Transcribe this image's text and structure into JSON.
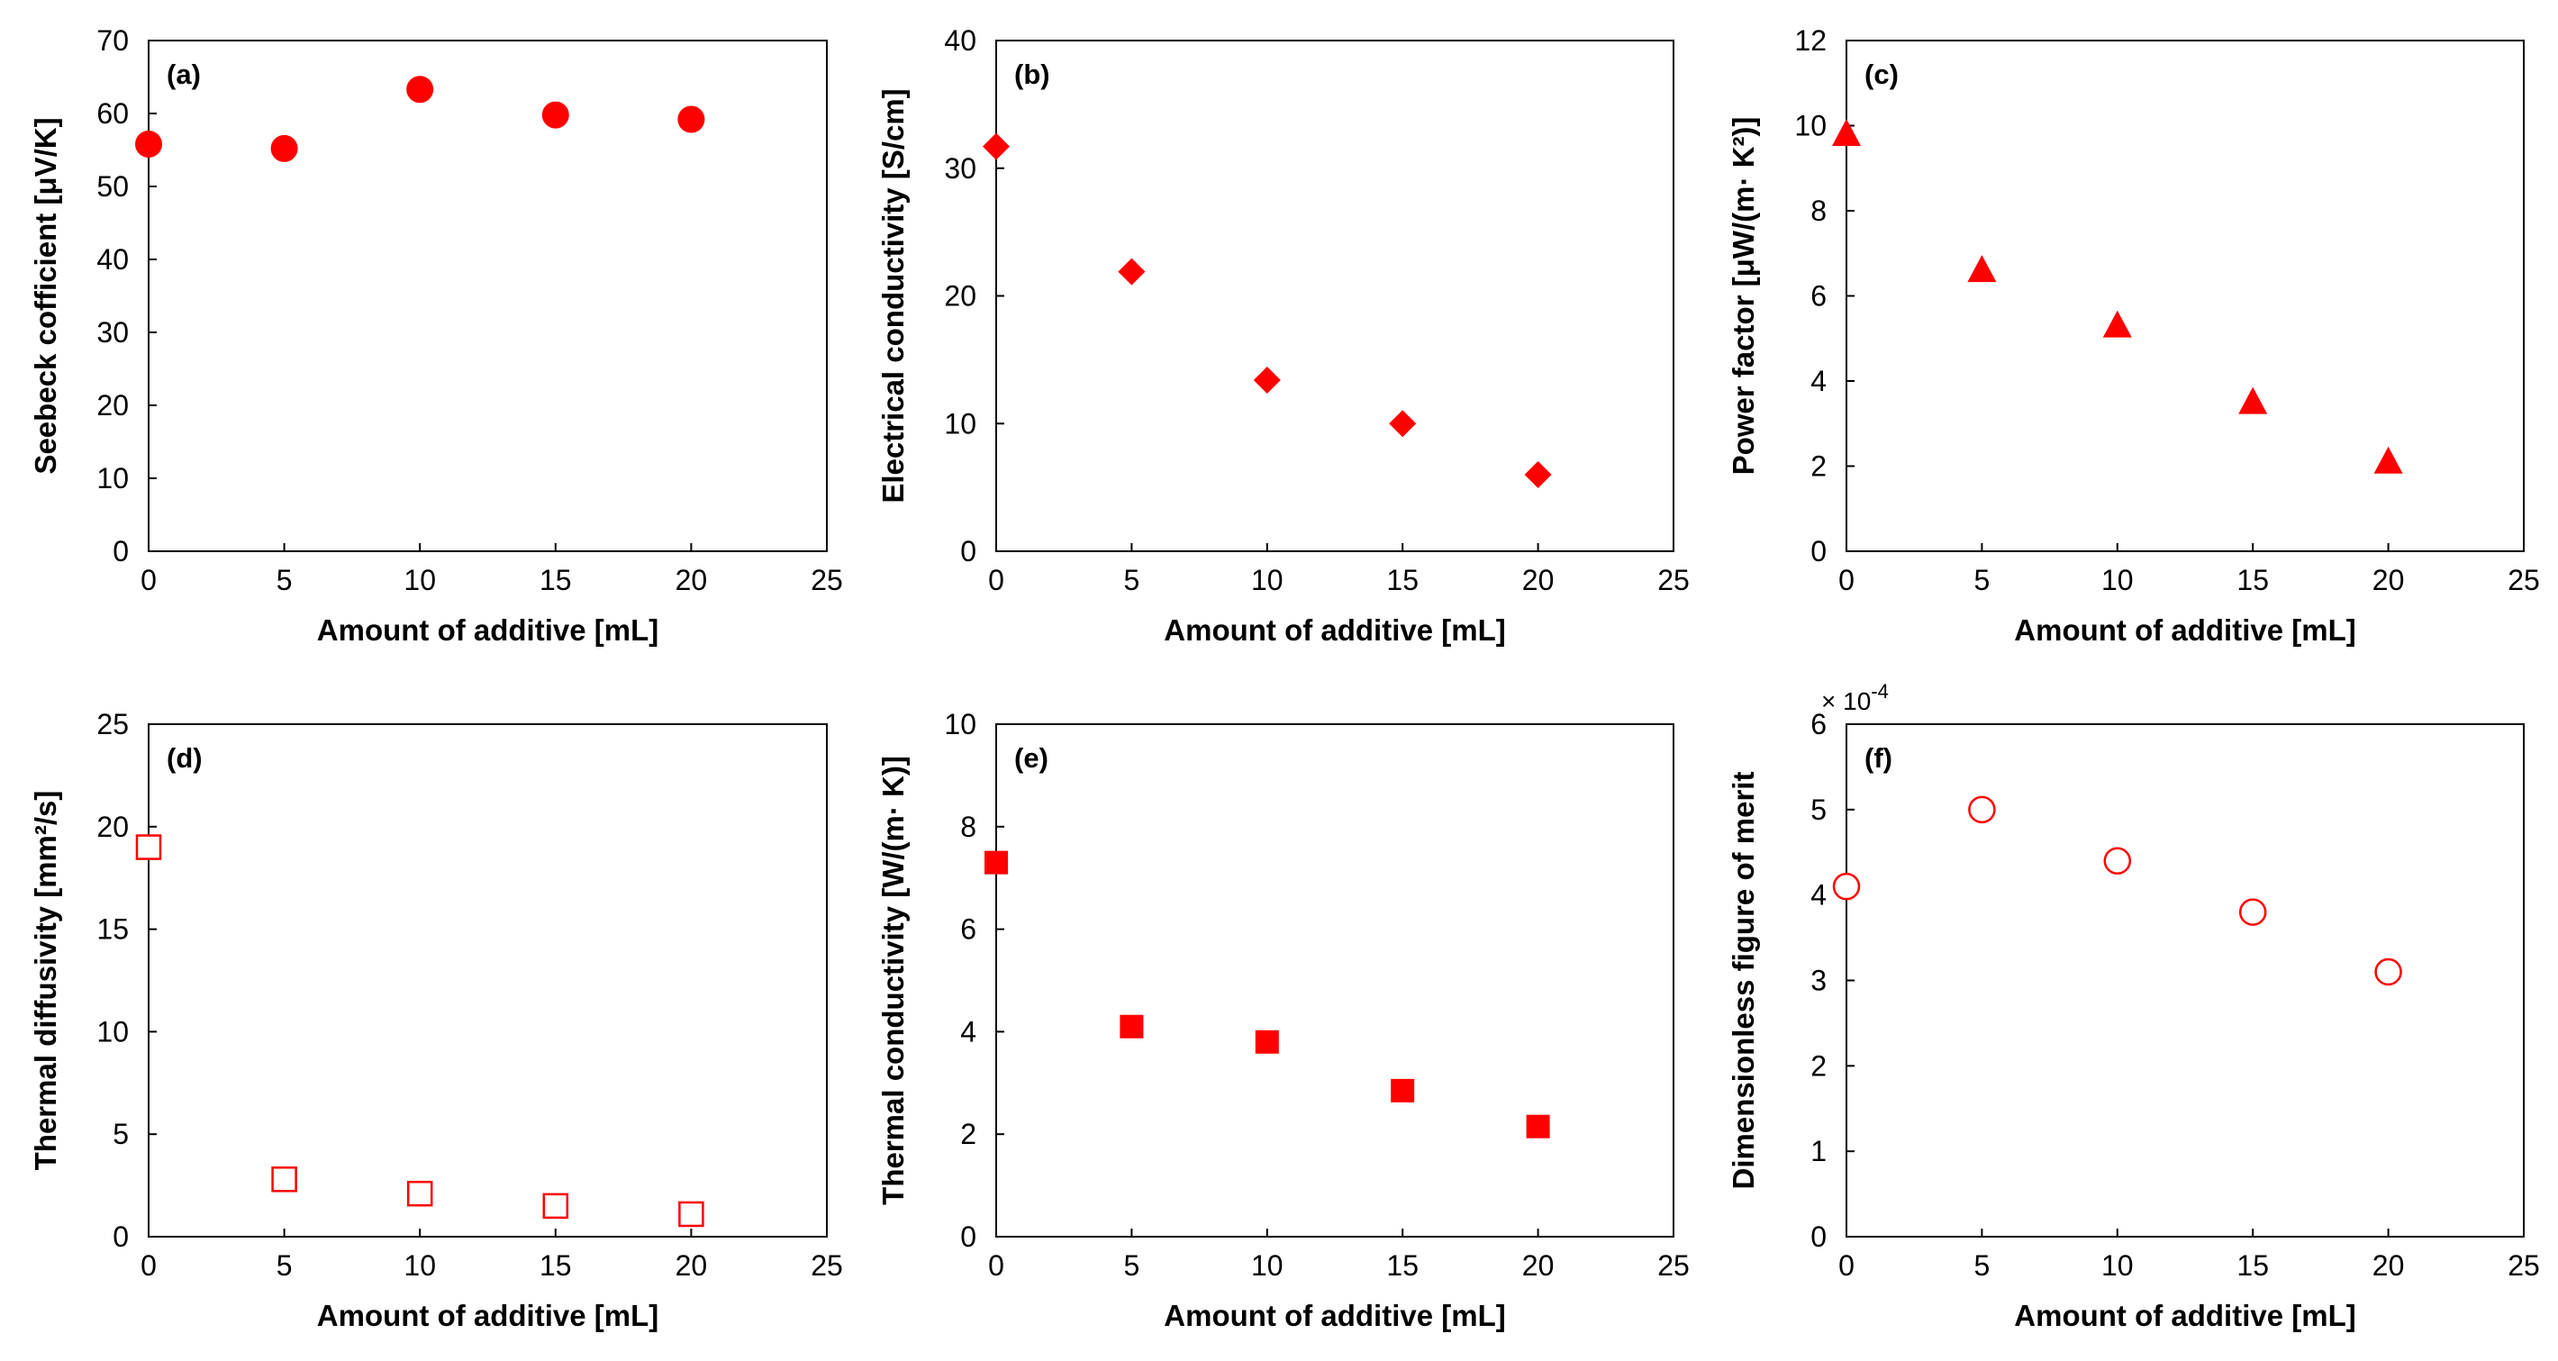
{
  "chart_data": [
    {
      "type": "scatter",
      "panel_label": "(a)",
      "xlabel": "Amount of additive [mL]",
      "ylabel": "Seebeck cofficient [μV/K]",
      "xlim": [
        0,
        25
      ],
      "ylim": [
        0,
        70
      ],
      "xticks": [
        0,
        5,
        10,
        15,
        20,
        25
      ],
      "yticks": [
        0,
        10,
        20,
        30,
        40,
        50,
        60,
        70
      ],
      "x": [
        0,
        5,
        10,
        15,
        20
      ],
      "y": [
        55.8,
        55.2,
        63.3,
        59.8,
        59.2
      ],
      "marker": "circle",
      "filled": true,
      "color": "#ff0000"
    },
    {
      "type": "scatter",
      "panel_label": "(b)",
      "xlabel": "Amount of additive [mL]",
      "ylabel": "Electrical conductivity [S/cm]",
      "xlim": [
        0,
        25
      ],
      "ylim": [
        0,
        40
      ],
      "xticks": [
        0,
        5,
        10,
        15,
        20,
        25
      ],
      "yticks": [
        0,
        10,
        20,
        30,
        40
      ],
      "x": [
        0,
        5,
        10,
        15,
        20
      ],
      "y": [
        31.7,
        21.9,
        13.4,
        10.0,
        6.0
      ],
      "marker": "diamond",
      "filled": true,
      "color": "#ff0000"
    },
    {
      "type": "scatter",
      "panel_label": "(c)",
      "xlabel": "Amount of additive [mL]",
      "ylabel": "Power factor [μW/(m· K²)]",
      "xlim": [
        0,
        25
      ],
      "ylim": [
        0,
        12
      ],
      "xticks": [
        0,
        5,
        10,
        15,
        20,
        25
      ],
      "yticks": [
        0,
        2,
        4,
        6,
        8,
        10,
        12
      ],
      "x": [
        0,
        5,
        10,
        15,
        20
      ],
      "y": [
        9.8,
        6.6,
        5.3,
        3.5,
        2.1
      ],
      "marker": "triangle",
      "filled": true,
      "color": "#ff0000"
    },
    {
      "type": "scatter",
      "panel_label": "(d)",
      "xlabel": "Amount of additive [mL]",
      "ylabel": "Thermal diffusivity [mm²/s]",
      "xlim": [
        0,
        25
      ],
      "ylim": [
        0,
        25
      ],
      "xticks": [
        0,
        5,
        10,
        15,
        20,
        25
      ],
      "yticks": [
        0,
        5,
        10,
        15,
        20,
        25
      ],
      "x": [
        0,
        5,
        10,
        15,
        20
      ],
      "y": [
        19.0,
        2.8,
        2.1,
        1.5,
        1.1
      ],
      "marker": "square",
      "filled": false,
      "color": "#ff0000"
    },
    {
      "type": "scatter",
      "panel_label": "(e)",
      "xlabel": "Amount of additive [mL]",
      "ylabel": "Thermal conductivity [W/(m· K)]",
      "xlim": [
        0,
        25
      ],
      "ylim": [
        0,
        10
      ],
      "xticks": [
        0,
        5,
        10,
        15,
        20,
        25
      ],
      "yticks": [
        0,
        2,
        4,
        6,
        8,
        10
      ],
      "x": [
        0,
        5,
        10,
        15,
        20
      ],
      "y": [
        7.3,
        4.1,
        3.8,
        2.85,
        2.15
      ],
      "marker": "square",
      "filled": true,
      "color": "#ff0000"
    },
    {
      "type": "scatter",
      "panel_label": "(f)",
      "xlabel": "Amount of additive [mL]",
      "ylabel": "Dimensionless figure of merit",
      "exponent_label": "× 10",
      "exponent_power": "-4",
      "xlim": [
        0,
        25
      ],
      "ylim": [
        0,
        6
      ],
      "xticks": [
        0,
        5,
        10,
        15,
        20,
        25
      ],
      "yticks": [
        0,
        1,
        2,
        3,
        4,
        5,
        6
      ],
      "x": [
        0,
        5,
        10,
        15,
        20
      ],
      "y": [
        4.1,
        5.0,
        4.4,
        3.8,
        3.1
      ],
      "marker": "circle",
      "filled": false,
      "color": "#ff0000"
    }
  ]
}
